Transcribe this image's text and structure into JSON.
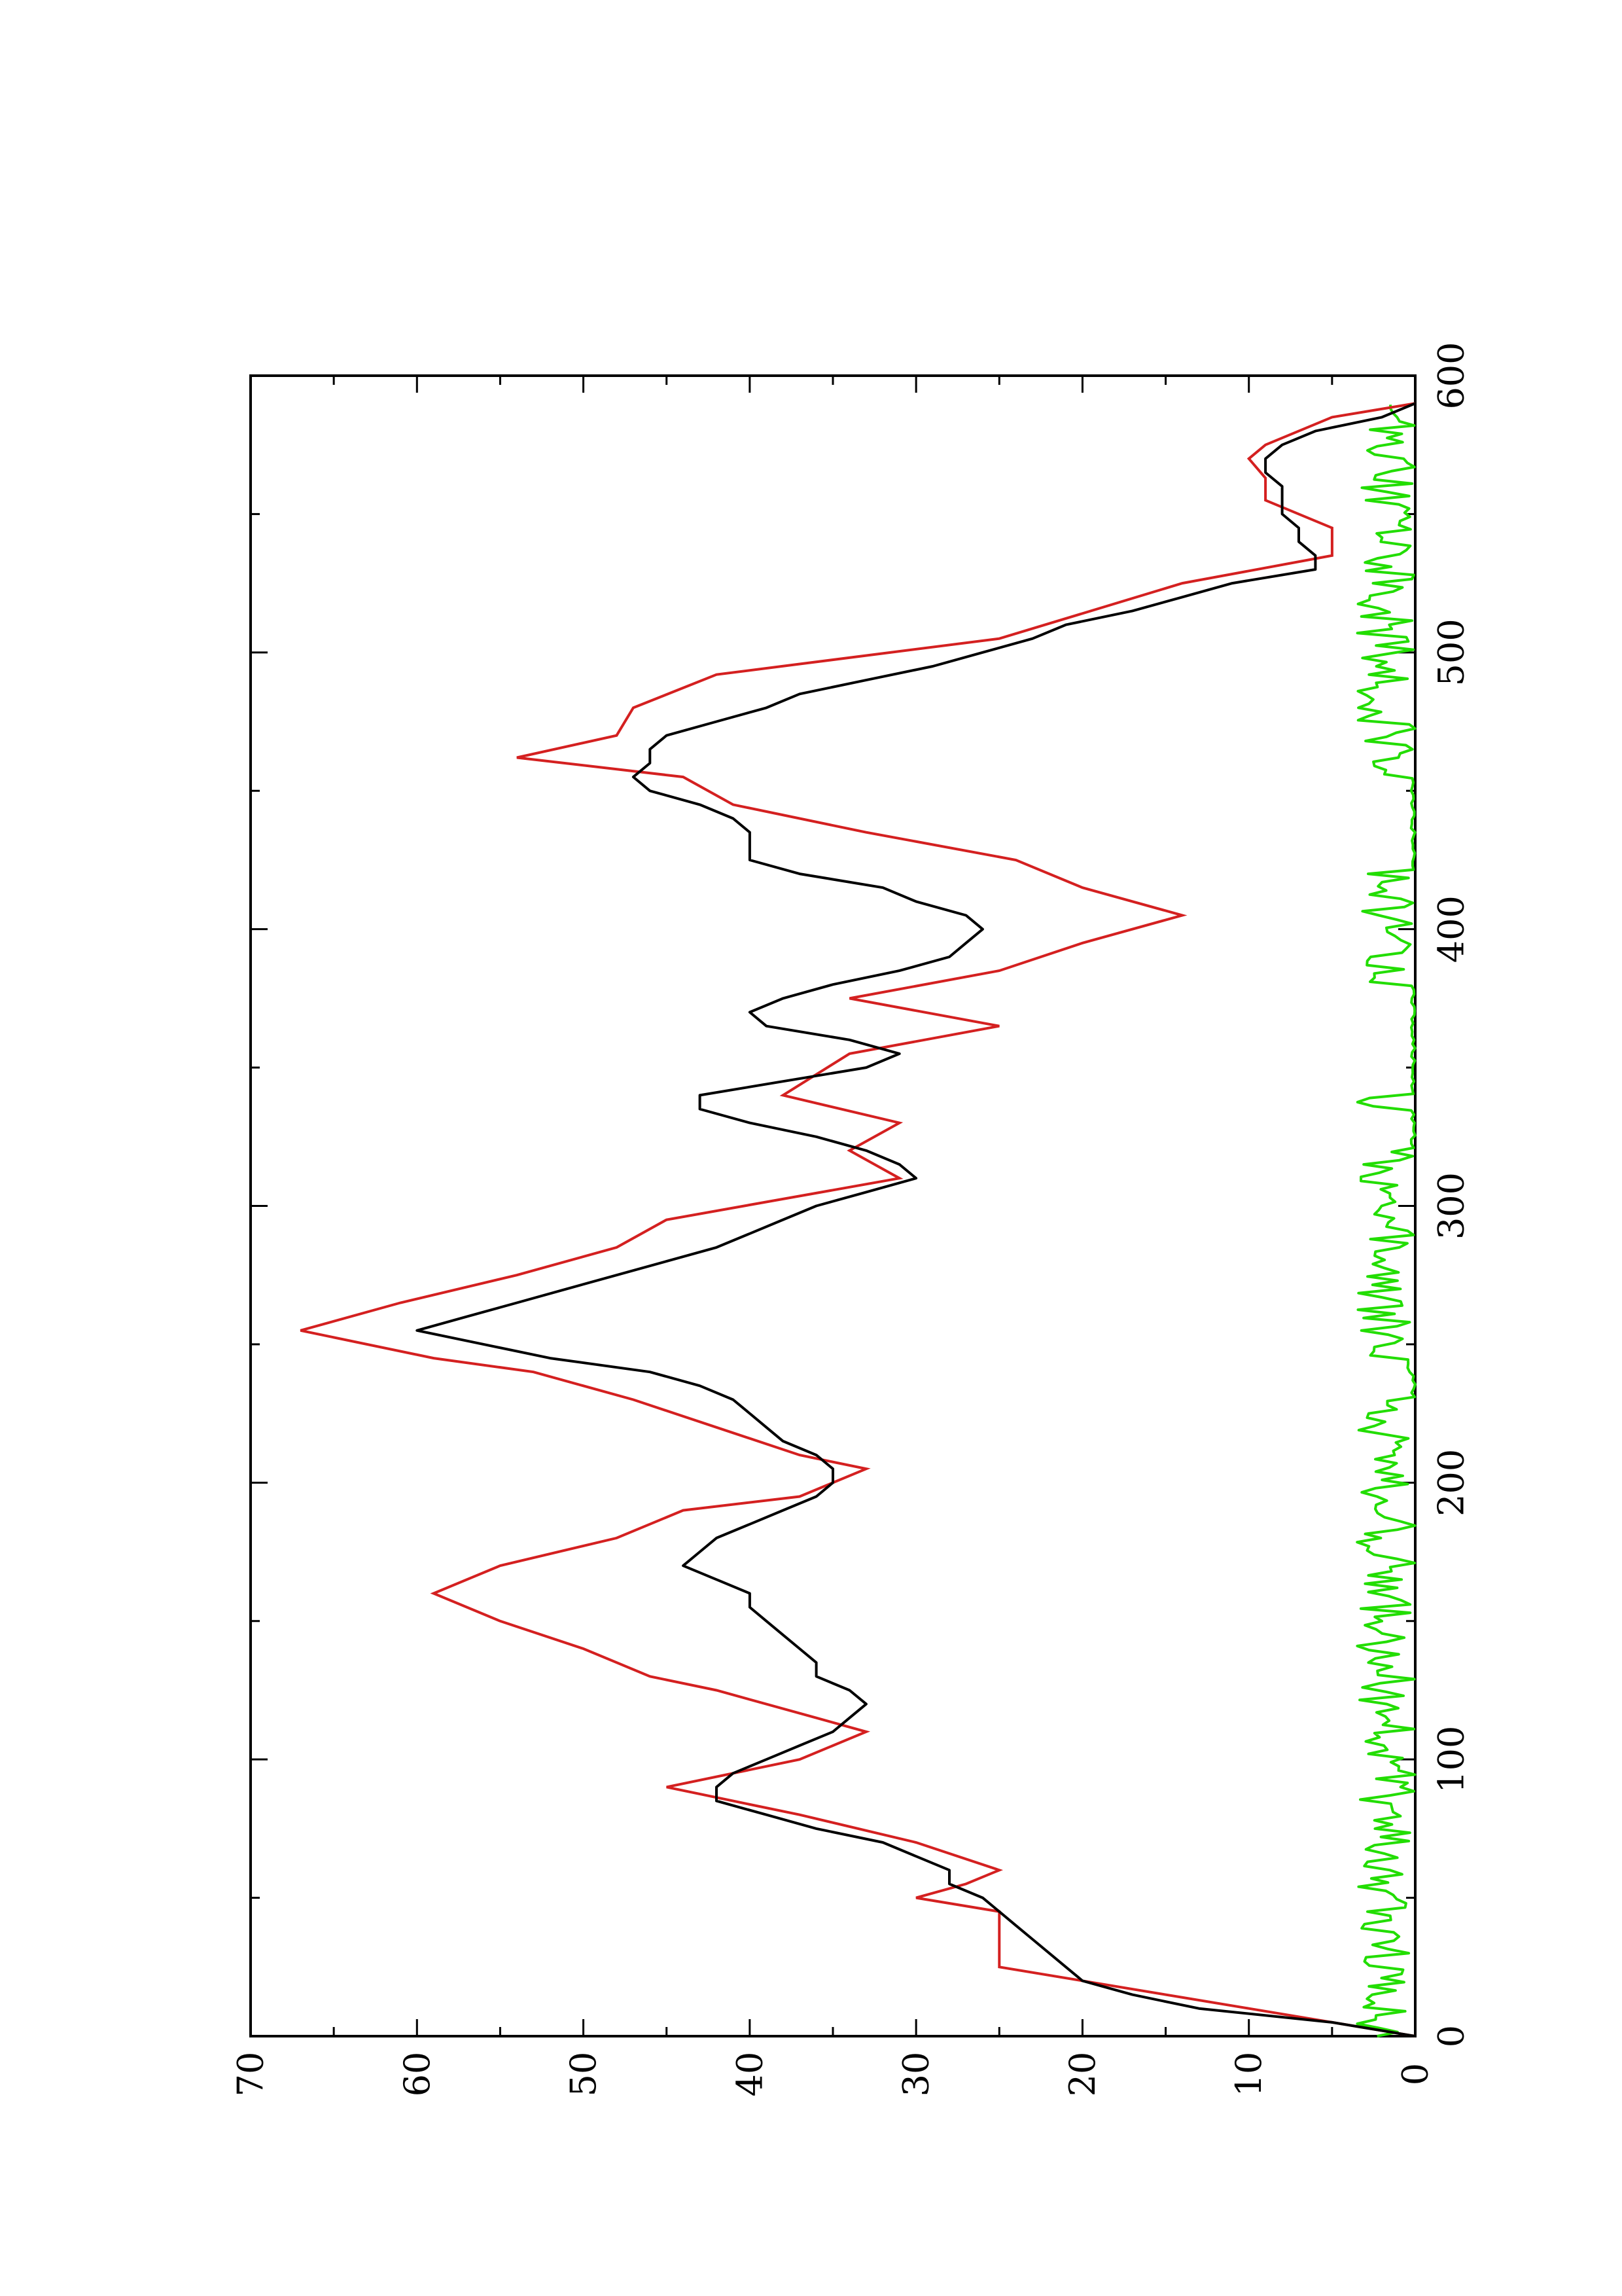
{
  "chart_data": {
    "type": "line",
    "orientation": "rotated-90-clockwise",
    "title": "",
    "xlabel": "",
    "ylabel": "",
    "xlim": [
      0,
      600
    ],
    "ylim": [
      0,
      70
    ],
    "x_ticks": [
      0,
      100,
      200,
      300,
      400,
      500,
      600
    ],
    "x_tick_labels": [
      "0",
      "100",
      "200",
      "300",
      "400",
      "500",
      "600"
    ],
    "y_ticks": [
      0,
      10,
      20,
      30,
      40,
      50,
      60,
      70
    ],
    "y_tick_labels": [
      "0",
      "10",
      "20",
      "30",
      "40",
      "50",
      "60",
      "70"
    ],
    "grid": false,
    "legend": "none",
    "series": [
      {
        "color": "#d42020",
        "shape": "step",
        "x": [
          0,
          10,
          25,
          45,
          50,
          55,
          60,
          70,
          80,
          85,
          90,
          100,
          110,
          115,
          125,
          130,
          140,
          150,
          160,
          170,
          180,
          190,
          195,
          205,
          210,
          220,
          230,
          240,
          245,
          255,
          265,
          275,
          285,
          295,
          310,
          320,
          330,
          340,
          355,
          365,
          375,
          385,
          395,
          405,
          415,
          425,
          435,
          445,
          455,
          462,
          470,
          480,
          492,
          505,
          525,
          535,
          545,
          555,
          563,
          570,
          575,
          585,
          590
        ],
        "y": [
          0,
          10,
          25,
          25,
          30,
          27,
          25,
          30,
          37,
          41,
          45,
          37,
          33,
          36,
          42,
          46,
          50,
          55,
          59,
          55,
          48,
          44,
          37,
          33,
          37,
          42,
          47,
          53,
          59,
          67,
          61,
          54,
          48,
          45,
          31,
          34,
          31,
          38,
          34,
          25,
          34,
          25,
          20,
          14,
          20,
          24,
          33,
          41,
          44,
          54,
          48,
          47,
          42,
          25,
          14,
          5,
          5,
          9,
          9,
          10,
          9,
          5,
          0
        ]
      },
      {
        "color": "#000000",
        "shape": "line",
        "x": [
          0,
          5,
          10,
          15,
          20,
          25,
          30,
          35,
          40,
          45,
          50,
          55,
          60,
          65,
          70,
          75,
          80,
          85,
          90,
          95,
          100,
          105,
          110,
          115,
          120,
          125,
          130,
          135,
          140,
          145,
          150,
          155,
          160,
          165,
          170,
          175,
          180,
          185,
          190,
          195,
          200,
          205,
          210,
          215,
          220,
          225,
          230,
          235,
          240,
          245,
          250,
          255,
          260,
          265,
          270,
          275,
          280,
          285,
          290,
          295,
          300,
          305,
          310,
          315,
          320,
          325,
          330,
          335,
          340,
          345,
          350,
          355,
          360,
          365,
          370,
          375,
          380,
          385,
          390,
          395,
          400,
          405,
          410,
          415,
          420,
          425,
          430,
          435,
          440,
          445,
          450,
          455,
          460,
          465,
          470,
          475,
          480,
          485,
          490,
          495,
          500,
          505,
          510,
          515,
          520,
          525,
          530,
          535,
          540,
          545,
          550,
          555,
          560,
          565,
          570,
          575,
          580,
          585,
          590
        ],
        "y": [
          0,
          5,
          13,
          17,
          20,
          21,
          22,
          23,
          24,
          25,
          26,
          28,
          28,
          30,
          32,
          36,
          39,
          42,
          42,
          41,
          39,
          37,
          35,
          34,
          33,
          34,
          36,
          36,
          37,
          38,
          39,
          40,
          40,
          42,
          44,
          43,
          42,
          40,
          38,
          36,
          35,
          35,
          36,
          38,
          39,
          40,
          41,
          43,
          46,
          52,
          56,
          60,
          57,
          54,
          51,
          48,
          45,
          42,
          40,
          38,
          36,
          33,
          30,
          31,
          33,
          36,
          40,
          43,
          43,
          38,
          33,
          31,
          34,
          39,
          40,
          38,
          35,
          31,
          28,
          27,
          26,
          27,
          30,
          32,
          37,
          40,
          40,
          40,
          41,
          43,
          46,
          47,
          46,
          46,
          45,
          42,
          39,
          37,
          33,
          29,
          26,
          23,
          21,
          17,
          14,
          11,
          6,
          6,
          7,
          7,
          8,
          8,
          8,
          9,
          9,
          8,
          6,
          2,
          0
        ]
      },
      {
        "color": "#22dd00",
        "shape": "noise-line",
        "x_range": [
          0,
          590
        ],
        "active_regions": [
          [
            0,
            230
          ],
          [
            240,
            320
          ],
          [
            335,
            340
          ],
          [
            380,
            420
          ],
          [
            455,
            590
          ]
        ],
        "y_max": 3.5
      }
    ]
  }
}
